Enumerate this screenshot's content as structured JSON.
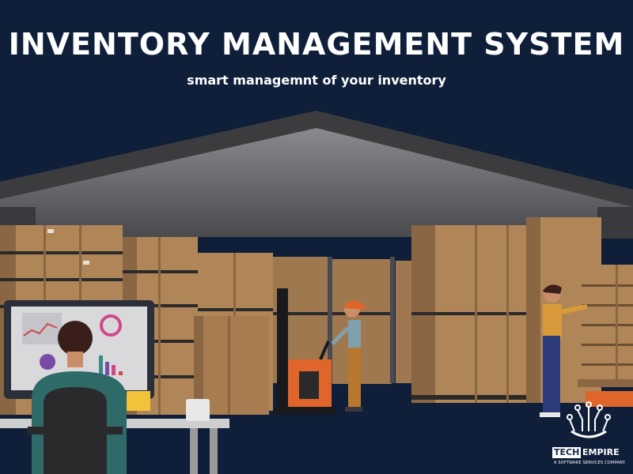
{
  "header": {
    "title": "INVENTORY MANAGEMENT SYSTEM",
    "subtitle": "smart managemnt of your inventory"
  },
  "logo": {
    "tech": "TECH",
    "empire": "EMPIRE",
    "tagline": "A SOFTWARE SERVICES COMPANY"
  },
  "colors": {
    "background": "#0f1f3a",
    "box": "#b08658",
    "box_dark": "#8a6642",
    "roof": "#3c3c3f",
    "wall": "#6c6c70",
    "forklift": "#e0652a"
  }
}
